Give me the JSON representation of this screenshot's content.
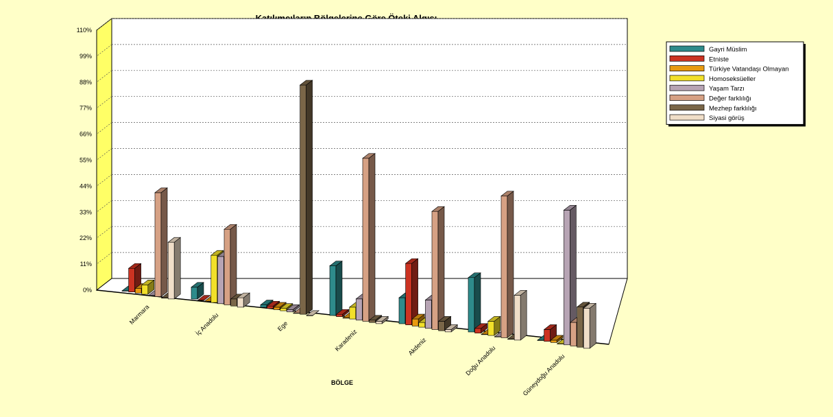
{
  "chart_data": {
    "type": "bar",
    "title": "Katılımcıların Bölgelerine Göre Öteki Algısı",
    "xlabel": "BÖLGE",
    "ylabel": "",
    "ylim": [
      0,
      110
    ],
    "yticks": [
      "0%",
      "11%",
      "22%",
      "33%",
      "44%",
      "55%",
      "66%",
      "77%",
      "88%",
      "99%",
      "110%"
    ],
    "grid": true,
    "legend_position": "top-right",
    "categories": [
      "Marmara",
      "İç Anadolu",
      "Ege",
      "Karadeniz",
      "Akdeniz",
      "Doğu Anadolu",
      "Güneydoğu Anadolu"
    ],
    "series": [
      {
        "name": "Gayri Müslim",
        "color": "#2e8b8b",
        "values": [
          0,
          5,
          1,
          21,
          11,
          23,
          0
        ]
      },
      {
        "name": "Etniste",
        "color": "#cc3322",
        "values": [
          10,
          0,
          1,
          1,
          26,
          2,
          5
        ]
      },
      {
        "name": "Türkiye Vatandaşı Olmayan",
        "color": "#e89a10",
        "values": [
          2,
          0,
          1,
          0,
          3,
          0,
          1
        ]
      },
      {
        "name": "Homoseksüeller",
        "color": "#f2e02a",
        "values": [
          4,
          20,
          1,
          5,
          2,
          6,
          0
        ]
      },
      {
        "name": "Yaşam Tarzı",
        "color": "#b7a4b4",
        "values": [
          0,
          20,
          1,
          9,
          12,
          0,
          57
        ]
      },
      {
        "name": "Değer farklılığı",
        "color": "#d6a184",
        "values": [
          44,
          32,
          0,
          69,
          50,
          60,
          10
        ]
      },
      {
        "name": "Mezhep farklılığı",
        "color": "#7a6648",
        "values": [
          0,
          3,
          97,
          1,
          4,
          0,
          17
        ]
      },
      {
        "name": "Siyasi görüş",
        "color": "#f0dec8",
        "values": [
          24,
          4,
          0,
          1,
          1,
          19,
          17
        ]
      }
    ]
  }
}
